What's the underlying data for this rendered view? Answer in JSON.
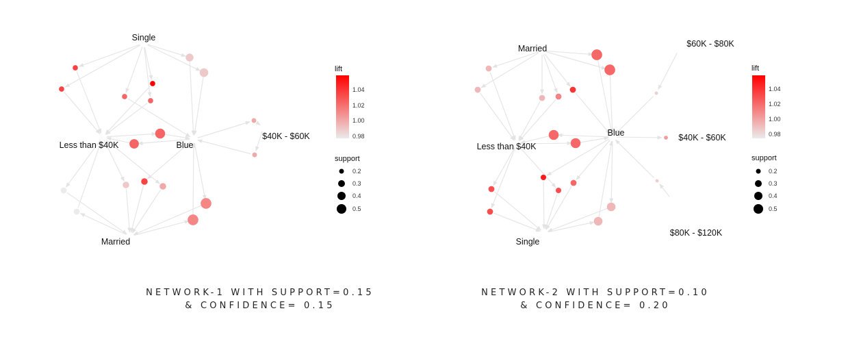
{
  "colors": {
    "edge": "#e6e6e6",
    "arrow": "#e3e3e3",
    "lift_low": "#ebebeb",
    "lift_high": "#ff0000",
    "legend_dot": "#000000"
  },
  "legend": {
    "lift_title": "lift",
    "lift_ticks": [
      "1.04",
      "1.02",
      "1.00",
      "0.98"
    ],
    "support_title": "support",
    "support_ticks": [
      "0.2",
      "0.3",
      "0.4",
      "0.5"
    ]
  },
  "captions": {
    "net1_line1": "NETWORK-1 WITH SUPPORT=0.15",
    "net1_line2": "& CONFIDENCE= 0.15",
    "net2_line1": "NETWORK-2 WITH SUPPORT=0.10",
    "net2_line2": "& CONFIDENCE= 0.20"
  },
  "chart_data": [
    {
      "type": "network",
      "title": "NETWORK-1 WITH SUPPORT=0.15 & CONFIDENCE= 0.15",
      "items": [
        "Single",
        "Less than $40K",
        "Blue",
        "$40K - $60K",
        "Married"
      ],
      "legend": {
        "color": "lift",
        "size": "support",
        "lift_range": [
          0.98,
          1.05
        ],
        "support_ticks": [
          0.2,
          0.3,
          0.4,
          0.5
        ]
      },
      "rules": [
        {
          "lift": 1.03,
          "support": 0.17
        },
        {
          "lift": 1.03,
          "support": 0.17
        },
        {
          "lift": 0.99,
          "support": 0.27
        },
        {
          "lift": 0.99,
          "support": 0.3
        },
        {
          "lift": 1.05,
          "support": 0.17
        },
        {
          "lift": 1.02,
          "support": 0.17
        },
        {
          "lift": 1.02,
          "support": 0.17
        },
        {
          "lift": 1.02,
          "support": 0.35
        },
        {
          "lift": 1.02,
          "support": 0.33
        },
        {
          "lift": 1.0,
          "support": 0.15
        },
        {
          "lift": 1.0,
          "support": 0.15
        },
        {
          "lift": 0.99,
          "support": 0.22
        },
        {
          "lift": 1.03,
          "support": 0.22
        },
        {
          "lift": 1.0,
          "support": 0.22
        },
        {
          "lift": 0.98,
          "support": 0.2
        },
        {
          "lift": 0.98,
          "support": 0.2
        },
        {
          "lift": 1.01,
          "support": 0.38
        },
        {
          "lift": 1.01,
          "support": 0.38
        }
      ]
    },
    {
      "type": "network",
      "title": "NETWORK-2 WITH SUPPORT=0.10 & CONFIDENCE= 0.20",
      "items": [
        "Married",
        "$60K - $80K",
        "Blue",
        "$40K - $60K",
        "Less than $40K",
        "Single",
        "$80K - $120K"
      ],
      "legend": {
        "color": "lift",
        "size": "support",
        "lift_range": [
          0.97,
          1.06
        ],
        "support_ticks": [
          0.2,
          0.3,
          0.4,
          0.5
        ]
      },
      "rules": [
        {
          "lift": 0.99,
          "support": 0.2
        },
        {
          "lift": 0.99,
          "support": 0.2
        },
        {
          "lift": 1.02,
          "support": 0.38
        },
        {
          "lift": 1.02,
          "support": 0.38
        },
        {
          "lift": 1.04,
          "support": 0.2
        },
        {
          "lift": 1.01,
          "support": 0.2
        },
        {
          "lift": 0.99,
          "support": 0.2
        },
        {
          "lift": 1.02,
          "support": 0.35
        },
        {
          "lift": 1.02,
          "support": 0.35
        },
        {
          "lift": 1.0,
          "support": 0.12
        },
        {
          "lift": 1.03,
          "support": 0.2
        },
        {
          "lift": 1.03,
          "support": 0.2
        },
        {
          "lift": 1.05,
          "support": 0.18
        },
        {
          "lift": 1.02,
          "support": 0.2
        },
        {
          "lift": 1.03,
          "support": 0.18
        },
        {
          "lift": 0.99,
          "support": 0.3
        },
        {
          "lift": 0.99,
          "support": 0.3
        },
        {
          "lift": 0.98,
          "support": 0.1
        },
        {
          "lift": 0.98,
          "support": 0.1
        }
      ]
    }
  ]
}
